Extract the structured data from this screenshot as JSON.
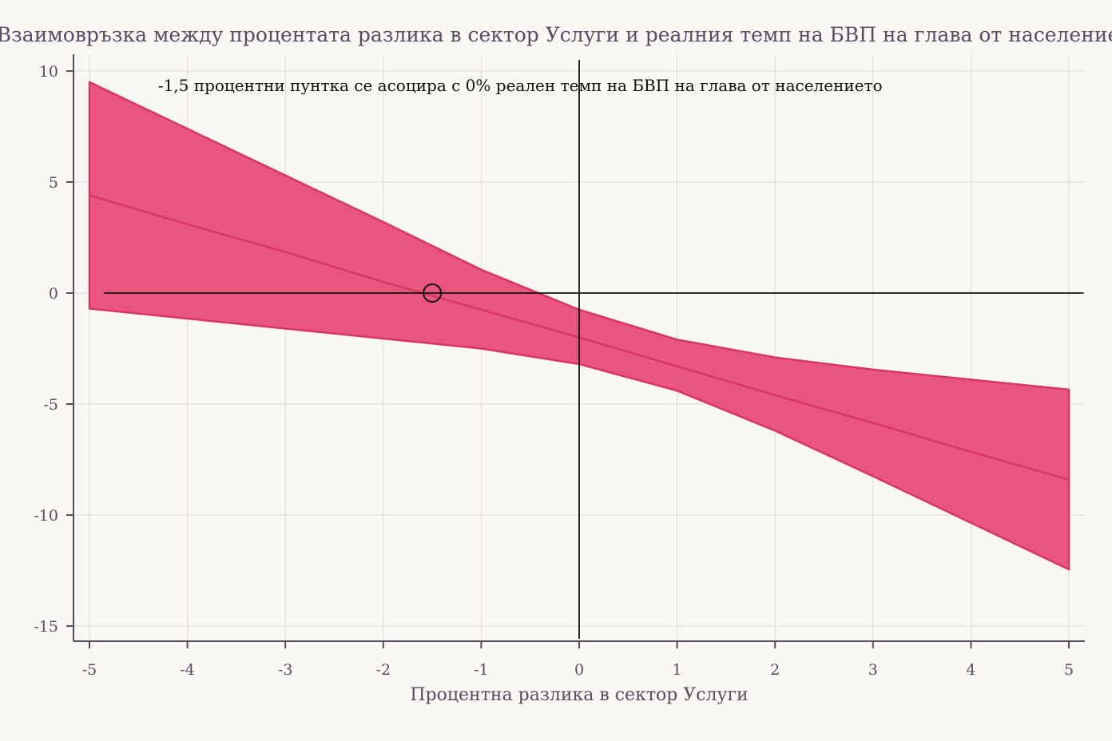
{
  "chart_data": {
    "type": "area",
    "title": "Взаимовръзка между процентата разлика в сектор Услуги и реалния темп на БВП на глава от населението",
    "xlabel": "Процентна разлика в сектор Услуги",
    "ylabel": "",
    "xlim": [
      -5.2,
      5.15
    ],
    "ylim": [
      -15.7,
      10.7
    ],
    "x_ticks": [
      -5,
      -4,
      -3,
      -2,
      -1,
      0,
      1,
      2,
      3,
      4,
      5
    ],
    "y_ticks": [
      10,
      5,
      0,
      -5,
      -10,
      -15
    ],
    "x_tick_labels": [
      "-5",
      "-4",
      "-3",
      "-2",
      "-1",
      "0",
      "1",
      "2",
      "3",
      "4",
      "5"
    ],
    "y_tick_labels": [
      "10",
      "5",
      "0",
      "-5",
      "-10",
      "-15"
    ],
    "grid": true,
    "series": [
      {
        "x": [
          -5,
          -4,
          -3,
          -2,
          -1,
          0,
          1,
          2,
          3,
          4,
          5
        ],
        "estimate": [
          4.4,
          3.1,
          1.85,
          0.5,
          -0.75,
          -2.0,
          -3.3,
          -4.6,
          -5.85,
          -7.15,
          -8.4
        ],
        "upper": [
          9.5,
          7.4,
          5.3,
          3.2,
          1.05,
          -0.75,
          -2.1,
          -2.9,
          -3.45,
          -3.9,
          -4.35
        ],
        "lower": [
          -0.7,
          -1.15,
          -1.6,
          -2.05,
          -2.5,
          -3.2,
          -4.4,
          -6.2,
          -8.25,
          -10.35,
          -12.45
        ]
      }
    ],
    "reference_lines": {
      "horizontal": {
        "y": 0,
        "x_from": -4.85,
        "x_to": 5.15
      },
      "vertical": {
        "x": 0,
        "y_from": -15.7,
        "y_to": 10.5
      }
    },
    "highlight_point": {
      "x": -1.5,
      "y": 0
    },
    "annotation": {
      "text": "-1,5 процентни пунтка се асоцира с 0% реален темп на БВП на глава от населението",
      "x": -4.3,
      "y": 9.1
    },
    "colors": {
      "band_fill": "#e8567e",
      "band_stroke": "#d83565",
      "line": "#d83565",
      "reference": "#111111",
      "axis": "#5a4a66",
      "grid": "#dcdad2",
      "background": "#f9f8f3"
    }
  }
}
